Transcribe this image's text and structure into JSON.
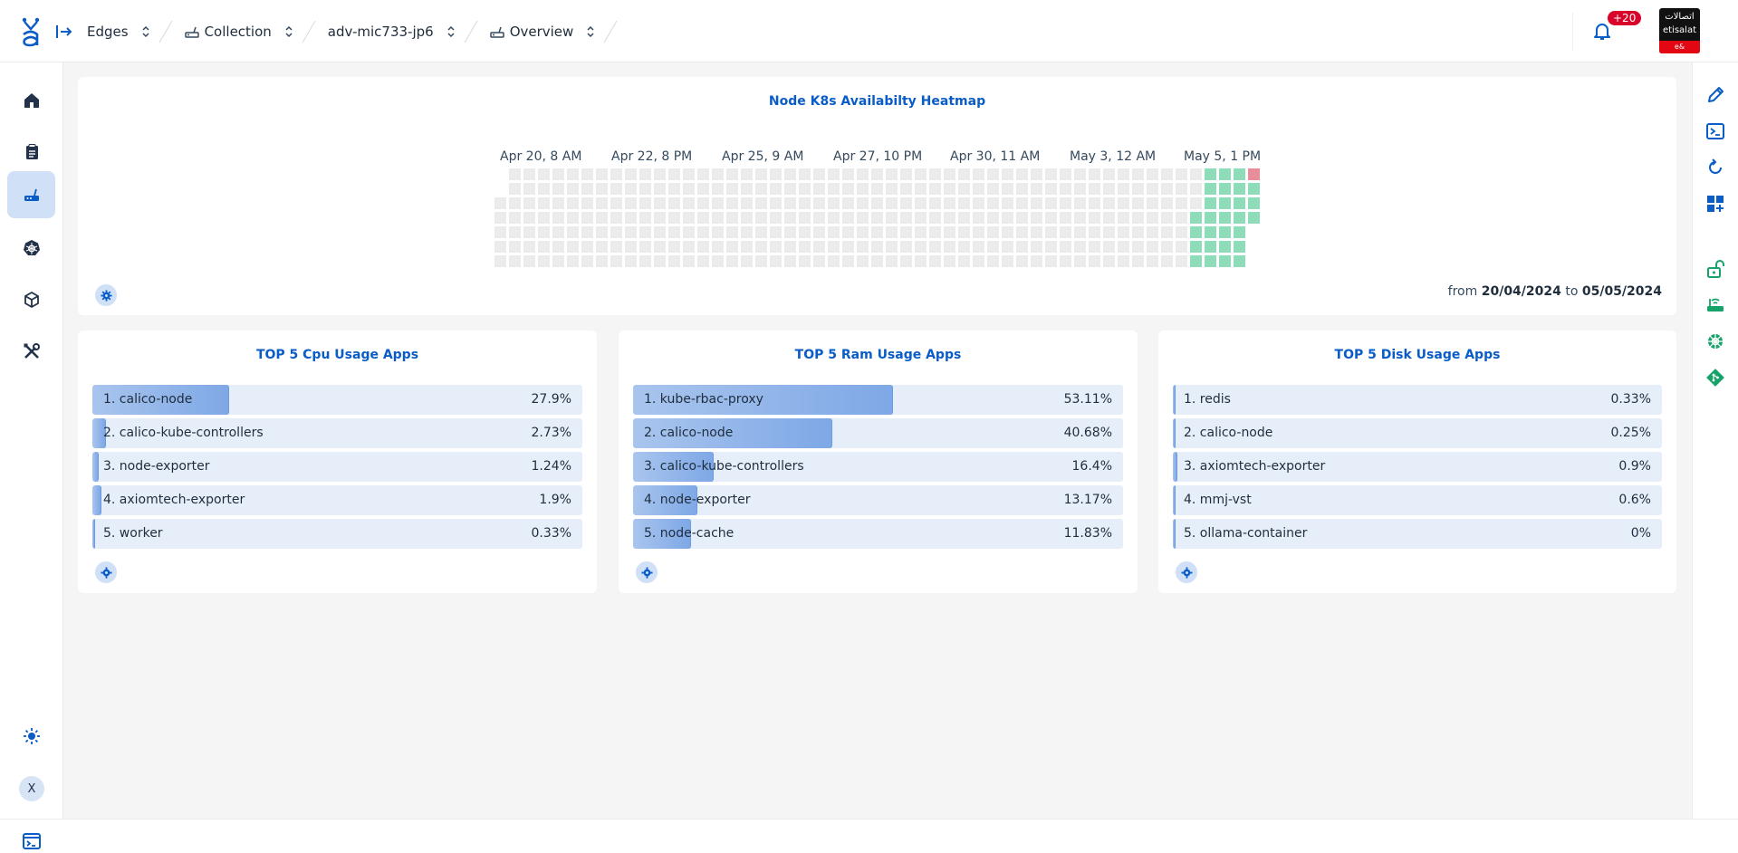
{
  "header": {
    "logo_icon": "app-logo-icon",
    "breadcrumbs": [
      {
        "label": "Edges",
        "icon": null
      },
      {
        "label": "Collection",
        "icon": "router-icon"
      },
      {
        "label": "adv-mic733-jp6",
        "icon": null
      },
      {
        "label": "Overview",
        "icon": "router-icon"
      }
    ],
    "notifications_badge": "+20",
    "brand_arabic": "اتصالات",
    "brand_name": "etisalat",
    "brand_tag": "e&"
  },
  "leftnav": {
    "items": [
      "home-icon",
      "clipboard-icon",
      "router-icon",
      "kubernetes-icon",
      "package-icon",
      "tools-icon"
    ],
    "active_index": 2,
    "theme_icon": "sun-icon",
    "avatar_initial": "X"
  },
  "rightrail": {
    "items": [
      "pencil-icon",
      "terminal-icon",
      "refresh-icon",
      "dashboard-add-icon",
      "unlock-icon",
      "router-wifi-icon",
      "helm-icon",
      "git-icon"
    ]
  },
  "heatmap": {
    "title": "Node K8s Availabilty Heatmap",
    "x_labels": [
      "Apr 20, 8 AM",
      "Apr 22, 8 PM",
      "Apr 25, 9 AM",
      "Apr 27, 10 PM",
      "Apr 30, 11 AM",
      "May 3, 12 AM",
      "May 5, 1 PM"
    ],
    "range_from_label": "from",
    "range_from": "20/04/2024",
    "range_to_label": "to",
    "range_to": "05/05/2024",
    "colors": {
      "empty": "#ebebeb",
      "available": "#8edcb9",
      "unavailable": "#e98e99"
    }
  },
  "cpu": {
    "title": "TOP 5 Cpu Usage Apps",
    "items": [
      {
        "name": "1. calico-node",
        "value": "27.9%",
        "pct": 27.9
      },
      {
        "name": "2. calico-kube-controllers",
        "value": "2.73%",
        "pct": 2.73
      },
      {
        "name": "3. node-exporter",
        "value": "1.24%",
        "pct": 1.24
      },
      {
        "name": "4. axiomtech-exporter",
        "value": "1.9%",
        "pct": 1.9
      },
      {
        "name": "5. worker",
        "value": "0.33%",
        "pct": 0.33
      }
    ]
  },
  "ram": {
    "title": "TOP 5 Ram Usage Apps",
    "items": [
      {
        "name": "1. kube-rbac-proxy",
        "value": "53.11%",
        "pct": 53.11
      },
      {
        "name": "2. calico-node",
        "value": "40.68%",
        "pct": 40.68
      },
      {
        "name": "3. calico-kube-controllers",
        "value": "16.4%",
        "pct": 16.4
      },
      {
        "name": "4. node-exporter",
        "value": "13.17%",
        "pct": 13.17
      },
      {
        "name": "5. node-cache",
        "value": "11.83%",
        "pct": 11.83
      }
    ]
  },
  "disk": {
    "title": "TOP 5 Disk Usage Apps",
    "items": [
      {
        "name": "1. redis",
        "value": "0.33%",
        "pct": 0.33
      },
      {
        "name": "2. calico-node",
        "value": "0.25%",
        "pct": 0.25
      },
      {
        "name": "3. axiomtech-exporter",
        "value": "0.9%",
        "pct": 0.9
      },
      {
        "name": "4. mmj-vst",
        "value": "0.6%",
        "pct": 0.6
      },
      {
        "name": "5. ollama-container",
        "value": "0%",
        "pct": 0
      }
    ]
  }
}
